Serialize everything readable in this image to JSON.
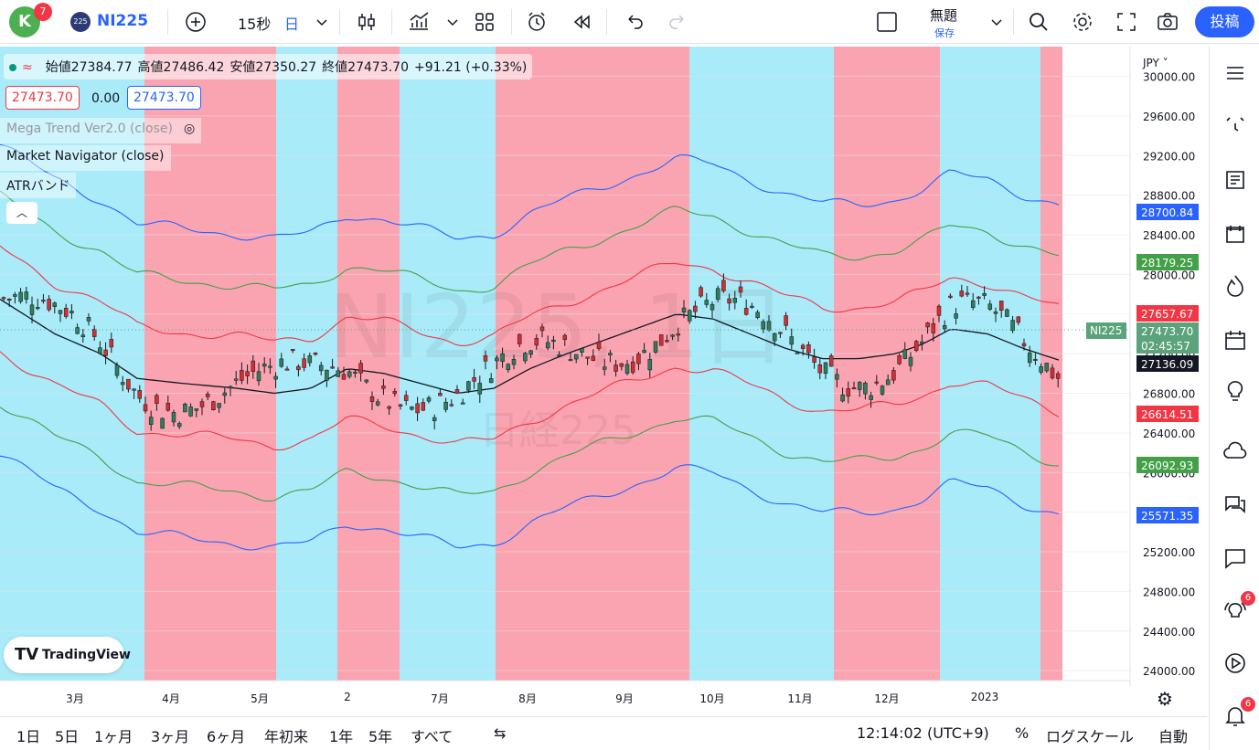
{
  "topbar": {
    "avatar_letter": "K",
    "notif_count": "7",
    "symbol_badge": "225",
    "symbol": "NI225",
    "interval": "15秒",
    "timeframe": "日",
    "layout_name": "無題",
    "save_label": "保存",
    "publish_label": "投稿"
  },
  "legend": {
    "open_label": "始値",
    "open": "27384.77",
    "high_label": "高値",
    "high": "27486.42",
    "low_label": "安値",
    "low": "27350.27",
    "close_label": "終値",
    "close": "27473.70",
    "change": "+91.21 (+0.33%)",
    "bid": "27473.70",
    "spread": "0.00",
    "ask": "27473.70",
    "indicators": [
      "Mega Trend Ver2.0 (close)",
      "Market Navigator (close)",
      "ATRバンド"
    ]
  },
  "watermark": {
    "main": "NI225, 1日",
    "sub": "日経225"
  },
  "price_axis": {
    "currency": "JPY",
    "ticks": [
      "30000.00",
      "29600.00",
      "29200.00",
      "28800.00",
      "28400.00",
      "28000.00",
      "27600.00",
      "27200.00",
      "26800.00",
      "26400.00",
      "26000.00",
      "25600.00",
      "25200.00",
      "24800.00",
      "24400.00",
      "24000.00"
    ],
    "labels": [
      {
        "text": "28700.84",
        "color": "#2962ff"
      },
      {
        "text": "28179.25",
        "color": "#43a047"
      },
      {
        "text": "27657.67",
        "color": "#f23645"
      },
      {
        "text": "27473.70",
        "color": "#5ba37a"
      },
      {
        "text": "27136.09",
        "color": "#131722"
      },
      {
        "text": "26614.51",
        "color": "#f23645"
      },
      {
        "text": "26092.93",
        "color": "#43a047"
      },
      {
        "text": "25571.35",
        "color": "#2962ff"
      }
    ],
    "countdown": "02:45:57",
    "symbol_tag": "NI225"
  },
  "time_axis": [
    "3月",
    "4月",
    "5月",
    "2",
    "7月",
    "8月",
    "9月",
    "10月",
    "11月",
    "12月",
    "2023"
  ],
  "bottombar": {
    "ranges": [
      "1日",
      "5日",
      "1ヶ月",
      "3ヶ月",
      "6ヶ月",
      "年初来",
      "1年",
      "5年",
      "すべて"
    ],
    "clock": "12:14:02 (UTC+9)",
    "percent": "%",
    "log": "ログスケール",
    "auto": "自動"
  },
  "brand": "TradingView",
  "rightbar_badges": {
    "ideas": "6",
    "alerts": "6"
  },
  "colors": {
    "bg_cyan": "#a9ebf9",
    "bg_pink": "#fba4b1",
    "accent": "#2962ff"
  },
  "chart_data": {
    "type": "candlestick",
    "ylim": [
      23900,
      30300
    ],
    "regions": [
      {
        "from": 0,
        "to": 158,
        "trend": "up"
      },
      {
        "from": 158,
        "to": 302,
        "trend": "down"
      },
      {
        "from": 302,
        "to": 369,
        "trend": "up"
      },
      {
        "from": 369,
        "to": 437,
        "trend": "down"
      },
      {
        "from": 437,
        "to": 542,
        "trend": "up"
      },
      {
        "from": 542,
        "to": 754,
        "trend": "down"
      },
      {
        "from": 754,
        "to": 912,
        "trend": "up"
      },
      {
        "from": 912,
        "to": 1028,
        "trend": "down"
      },
      {
        "from": 1028,
        "to": 1138,
        "trend": "up"
      },
      {
        "from": 1138,
        "to": 1162,
        "trend": "down"
      }
    ],
    "middle": [
      [
        0,
        27750
      ],
      [
        60,
        27400
      ],
      [
        110,
        27200
      ],
      [
        150,
        26950
      ],
      [
        200,
        26900
      ],
      [
        260,
        26850
      ],
      [
        300,
        26800
      ],
      [
        340,
        26850
      ],
      [
        380,
        27050
      ],
      [
        420,
        27000
      ],
      [
        460,
        26900
      ],
      [
        500,
        26800
      ],
      [
        540,
        26850
      ],
      [
        580,
        27050
      ],
      [
        620,
        27200
      ],
      [
        680,
        27400
      ],
      [
        740,
        27600
      ],
      [
        780,
        27550
      ],
      [
        820,
        27400
      ],
      [
        860,
        27250
      ],
      [
        900,
        27150
      ],
      [
        940,
        27150
      ],
      [
        980,
        27200
      ],
      [
        1010,
        27300
      ],
      [
        1040,
        27450
      ],
      [
        1080,
        27400
      ],
      [
        1120,
        27250
      ],
      [
        1158,
        27136
      ]
    ],
    "band_offsets": [
      520,
      1040,
      1560
    ]
  }
}
